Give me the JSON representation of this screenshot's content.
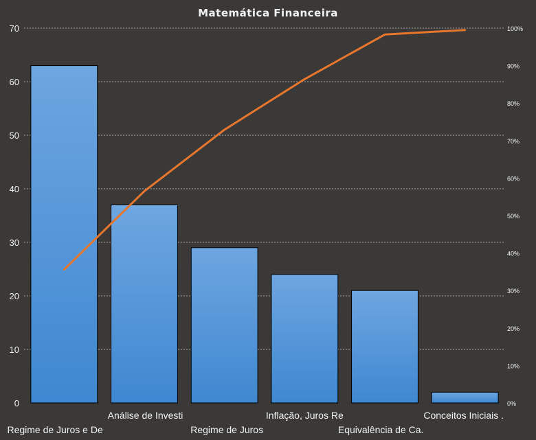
{
  "chart_data": {
    "type": "bar",
    "title": "Matemática Financeira",
    "categories": [
      "Regime de Juros e De",
      "Análise de Investi",
      "Regime de Juros",
      "Inflação, Juros Re",
      "Equivalência de Ca.",
      "Conceitos Iniciais ."
    ],
    "series": [
      {
        "type": "bar",
        "values": [
          63,
          37,
          29,
          24,
          21,
          2
        ]
      },
      {
        "type": "line",
        "axis": "secondary",
        "values": [
          35.6,
          56.5,
          72.9,
          86.4,
          98.3,
          99.5
        ]
      }
    ],
    "ylim": [
      0,
      70
    ],
    "yticks": [
      0,
      10,
      20,
      30,
      40,
      50,
      60,
      70
    ],
    "y2lim": [
      0,
      100
    ],
    "y2ticks": [
      "0%",
      "10%",
      "20%",
      "30%",
      "40%",
      "50%",
      "60%",
      "70%",
      "80%",
      "90%",
      "100%"
    ],
    "grid": true,
    "legend": "none",
    "colors": {
      "background": "#3a3938",
      "bar": "#4a90d9",
      "bar_light": "#6ea6e0",
      "line": "#e8772e",
      "text": "#f2f2f2",
      "grid": "#cfcfcf"
    }
  }
}
